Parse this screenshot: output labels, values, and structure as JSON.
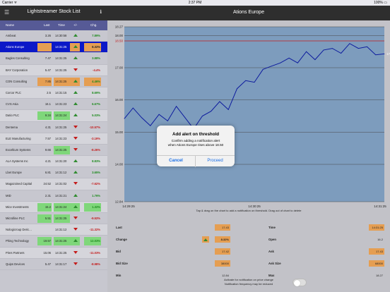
{
  "status": {
    "carrier": "Carrier ᯤ",
    "time": "2:37 PM",
    "battery": "100% ▭"
  },
  "left": {
    "title": "Lightstreamer Stock List",
    "menu_icon": "list-icon",
    "info_icon": "info-icon",
    "headers": {
      "name": "Name",
      "last": "Last",
      "time": "Time",
      "change": "+/-",
      "chg": "Chg."
    },
    "rows": [
      {
        "name": "Ambeat",
        "last": "3.26",
        "time": "14:30:58",
        "dir": "up",
        "chg": "7.89%",
        "pos": true,
        "hl_last": "",
        "hl_time": "",
        "hl_chg": ""
      },
      {
        "name": "Ations Europe",
        "last": "",
        "time": "14:31:25",
        "dir": "up",
        "chg": "8.32%",
        "pos": true,
        "hl_last": "o",
        "hl_time": "",
        "hl_chg": "o",
        "selected": true
      },
      {
        "name": "Bagles Consulting",
        "last": "7.47",
        "time": "14:31:25",
        "dir": "up",
        "chg": "3.88%",
        "pos": true
      },
      {
        "name": "BAY Corporation",
        "last": "5.47",
        "time": "14:31:25",
        "dir": "down",
        "chg": "-4.4%",
        "pos": false
      },
      {
        "name": "CON Consulting",
        "last": "7.85",
        "time": "14:31:25",
        "dir": "up",
        "chg": "4.46%",
        "pos": true,
        "hl_last": "o",
        "hl_time": "o",
        "hl_chg": "o"
      },
      {
        "name": "Corcor PLC",
        "last": "2.5",
        "time": "14:31:15",
        "dir": "up",
        "chg": "8.69%",
        "pos": true
      },
      {
        "name": "CVS Asia",
        "last": "16.1",
        "time": "14:31:23",
        "dir": "up",
        "chg": "6.67%",
        "pos": true
      },
      {
        "name": "Datio PLC",
        "last": "9.34",
        "time": "14:31:24",
        "dir": "up",
        "chg": "5.03%",
        "pos": true,
        "hl_last": "g",
        "hl_time": "g",
        "hl_chg": ""
      },
      {
        "name": "Dentema",
        "last": "4.31",
        "time": "14:31:25",
        "dir": "down",
        "chg": "-10.57%",
        "pos": false
      },
      {
        "name": "ELE Manufacturing",
        "last": "7.57",
        "time": "14:31:23",
        "dir": "down",
        "chg": "-3.19%",
        "pos": false
      },
      {
        "name": "Exceltium Systems",
        "last": "9.66",
        "time": "14:31:25",
        "dir": "down",
        "chg": "-8.26%",
        "pos": false,
        "hl_time": "g"
      },
      {
        "name": "ALA Systems Inc",
        "last": "4.21",
        "time": "14:31:20",
        "dir": "up",
        "chg": "8.83%",
        "pos": true
      },
      {
        "name": "Lbet Europe",
        "last": "6.81",
        "time": "14:31:12",
        "dir": "up",
        "chg": "3.65%",
        "pos": true
      },
      {
        "name": "Magazoined Capital",
        "last": "24.52",
        "time": "14:31:02",
        "dir": "down",
        "chg": "-7.62%",
        "pos": false
      },
      {
        "name": "MID",
        "last": "2.31",
        "time": "14:31:21",
        "dir": "up",
        "chg": "1.76%",
        "pos": true
      },
      {
        "name": "Mice Investments",
        "last": "15.2",
        "time": "14:31:24",
        "dir": "up",
        "chg": "1.32%",
        "pos": true,
        "hl_last": "g",
        "hl_time": "g",
        "hl_chg": "g"
      },
      {
        "name": "Microlline PLC",
        "last": "5.51",
        "time": "14:31:25",
        "dir": "down",
        "chg": "-9.53%",
        "pos": false,
        "hl_last": "g",
        "hl_time": "g"
      },
      {
        "name": "Nologicroup Deric...",
        "last": "",
        "time": "14:31:12",
        "dir": "down",
        "chg": "-11.32%",
        "pos": false
      },
      {
        "name": "Phing Technology",
        "last": "19.57",
        "time": "14:31:25",
        "dir": "up",
        "chg": "12.03%",
        "pos": true,
        "hl_last": "g",
        "hl_time": "g",
        "hl_chg": "g"
      },
      {
        "name": "Pires Partners",
        "last": "15.06",
        "time": "14:31:25",
        "dir": "down",
        "chg": "-11.03%",
        "pos": false
      },
      {
        "name": "Quips Devices",
        "last": "5.47",
        "time": "14:31:17",
        "dir": "down",
        "chg": "-8.98%",
        "pos": false
      }
    ]
  },
  "right": {
    "title": "Ations Europe",
    "hint": "Tap & drag on the chart to add a notification on threshold. Drag out of chart to delete",
    "fields": {
      "last_label": "Last",
      "last_value": "17.43",
      "time_label": "Time",
      "time_value": "14:31:25",
      "change_label": "Change",
      "change_value": "8.32%",
      "open_label": "Open",
      "open_value": "16.2",
      "bid_label": "Bid",
      "bid_value": "17.42",
      "ask_label": "Ask",
      "ask_value": "17.43",
      "bidsize_label": "Bid Size",
      "bidsize_value": "38000",
      "asksize_label": "Ask Size",
      "asksize_value": "68000",
      "min_label": "Min",
      "min_value": "12.84",
      "max_label": "Max",
      "max_value": "18.27"
    },
    "notif1": "Activate for notification on price change",
    "notif2": "Notification frequency may be reduced"
  },
  "chart_data": {
    "type": "line",
    "title": "",
    "xlabel": "",
    "ylabel": "",
    "x_ticks": [
      "14:29:25",
      "14:30:25",
      "14:31:25"
    ],
    "y_ticks": [
      "12.84",
      "14.00",
      "15.00",
      "16.00",
      "17.00",
      "18.00",
      "18.27"
    ],
    "threshold": 18.5,
    "threshold_label": "18.50",
    "last_label": "17.43",
    "ylim": [
      12.84,
      18.27
    ],
    "grid": true,
    "x": [
      0,
      4,
      8,
      12,
      16,
      20,
      24,
      28,
      32,
      36,
      40,
      44,
      48,
      52,
      56,
      60,
      64,
      68,
      72,
      76,
      80,
      84,
      88,
      92,
      96,
      100,
      104,
      108,
      112,
      116,
      120
    ],
    "values": [
      15.42,
      15.75,
      15.45,
      15.2,
      15.55,
      15.35,
      15.8,
      15.45,
      15.1,
      15.5,
      15.65,
      15.95,
      15.7,
      16.35,
      16.6,
      16.55,
      16.95,
      17.05,
      17.15,
      17.3,
      17.15,
      17.5,
      17.25,
      17.55,
      17.6,
      17.45,
      17.75,
      17.6,
      17.65,
      17.4,
      17.43
    ],
    "colors": {
      "line": "#0d1b9e",
      "threshold": "#c41b1b",
      "bg": "#7d9cbd"
    }
  },
  "alert": {
    "title": "Add alert on threshold",
    "message1": "Confirm adding a notification alert",
    "message2": "when Ations Europe rises above 18.50",
    "cancel": "Cancel",
    "proceed": "Proceed"
  }
}
